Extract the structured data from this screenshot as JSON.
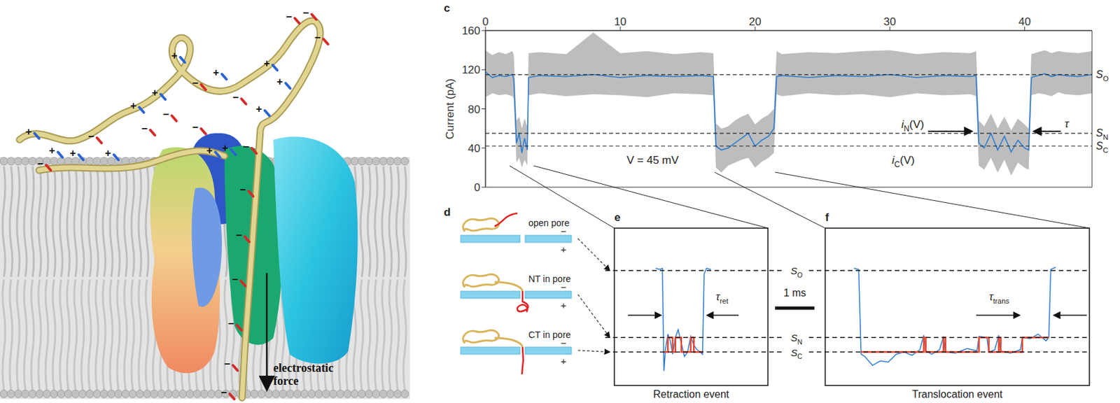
{
  "illustration": {
    "charges": [
      "+",
      "+",
      "−",
      "+",
      "−",
      "+",
      "+",
      "+",
      "−",
      "−",
      "+",
      "−",
      "+",
      "+",
      "−",
      "+",
      "−",
      "+",
      "+",
      "−",
      "−",
      "−",
      "+",
      "−",
      "−",
      "−",
      "−",
      "−",
      "−",
      "−"
    ],
    "charge_colors": {
      "+": "#2a63d4",
      "−": "#d42a2a"
    },
    "force_label": "electrostatic force"
  },
  "chart_data": [
    {
      "panel": "c",
      "type": "line",
      "x": [
        0,
        0.5,
        1,
        1.5,
        2,
        2.1,
        2.3,
        2.5,
        2.7,
        2.9,
        3.1,
        3.2,
        4,
        6,
        8,
        10,
        12,
        14,
        16,
        16.9,
        17.1,
        17.5,
        18,
        18.5,
        19,
        19.5,
        20,
        20.5,
        21,
        21.4,
        21.6,
        22,
        24,
        26,
        28,
        30,
        32,
        34,
        36,
        36.4,
        36.6,
        37,
        37.5,
        38,
        38.5,
        39,
        39.5,
        40,
        40.3,
        40.5,
        41,
        41.5,
        42,
        42.5,
        43,
        44,
        45
      ],
      "series": [
        {
          "values": [
            118,
            112,
            114,
            113,
            115,
            110,
            45,
            55,
            35,
            50,
            38,
            112,
            114,
            113,
            115,
            112,
            114,
            113,
            114,
            113,
            42,
            38,
            40,
            45,
            50,
            55,
            42,
            48,
            52,
            60,
            113,
            114,
            112,
            114,
            113,
            115,
            112,
            114,
            113,
            114,
            45,
            40,
            55,
            38,
            52,
            36,
            48,
            40,
            38,
            112,
            114,
            116,
            113,
            115,
            114,
            113,
            115
          ],
          "color": "#2b7bd0"
        }
      ],
      "raw": {
        "low": [
          92,
          96,
          94,
          95,
          93,
          90,
          25,
          30,
          20,
          28,
          22,
          94,
          96,
          93,
          95,
          94,
          92,
          96,
          95,
          94,
          20,
          15,
          22,
          25,
          28,
          30,
          20,
          26,
          30,
          35,
          95,
          93,
          96,
          94,
          95,
          92,
          96,
          94,
          95,
          93,
          22,
          18,
          30,
          15,
          28,
          12,
          25,
          20,
          18,
          94,
          96,
          95,
          93,
          97,
          95,
          94,
          96
        ],
        "high": [
          140,
          135,
          138,
          136,
          139,
          135,
          68,
          72,
          60,
          70,
          62,
          137,
          138,
          136,
          158,
          137,
          139,
          136,
          138,
          137,
          65,
          60,
          62,
          68,
          72,
          75,
          64,
          70,
          74,
          80,
          139,
          136,
          138,
          137,
          139,
          140,
          136,
          138,
          137,
          139,
          68,
          62,
          75,
          60,
          72,
          58,
          70,
          64,
          60,
          136,
          138,
          140,
          137,
          139,
          138,
          137,
          139
        ],
        "color": "#bdbdbd"
      },
      "xlim": [
        0,
        45
      ],
      "xticks": [
        0,
        10,
        20,
        30,
        40
      ],
      "ylim": [
        0,
        160
      ],
      "yticks": [
        0,
        40,
        80,
        120,
        160
      ],
      "y_label": "Current (pA)",
      "levels": [
        {
          "text": "S",
          "sub": "O",
          "value": 115
        },
        {
          "text": "S",
          "sub": "N",
          "value": 55
        },
        {
          "text": "S",
          "sub": "C",
          "value": 42
        }
      ],
      "annotations": [
        {
          "text": "V = 45 mV"
        },
        {
          "text": "i",
          "sub": "N",
          "suffix": "(V)"
        },
        {
          "text": "i",
          "sub": "C",
          "suffix": "(V)"
        },
        {
          "text": "τ"
        }
      ]
    },
    {
      "panel": "e",
      "type": "line",
      "title": "Retraction event",
      "x": [
        1.05,
        1.15,
        1.22,
        1.26,
        1.3,
        1.36,
        1.42,
        1.48,
        1.55,
        1.62,
        1.7,
        1.78,
        1.86,
        1.94,
        2.02,
        2.1,
        2.18,
        2.24,
        2.28,
        2.34,
        2.45
      ],
      "series": [
        {
          "values": [
            117,
            116,
            117,
            25,
            45,
            58,
            52,
            40,
            55,
            62,
            50,
            38,
            42,
            56,
            48,
            44,
            42,
            40,
            112,
            117,
            116
          ],
          "color": "#2b7bd0"
        },
        {
          "values": [
            null,
            null,
            null,
            42,
            42,
            55,
            55,
            42,
            55,
            55,
            42,
            42,
            42,
            55,
            42,
            42,
            42,
            42,
            null,
            null,
            null
          ],
          "color": "#e8452c",
          "line_style": "step"
        }
      ],
      "xlim": [
        0,
        3.9
      ],
      "ylim": [
        12,
        153
      ],
      "tick_labels": false,
      "annotations": [
        {
          "text": "τ",
          "sub": "ret"
        }
      ]
    },
    {
      "panel": "f",
      "type": "line",
      "title": "Translocation event",
      "x": [
        0.73,
        0.85,
        0.91,
        1.0,
        1.2,
        1.4,
        1.6,
        1.8,
        2.0,
        2.2,
        2.4,
        2.5,
        2.55,
        2.7,
        2.9,
        3.0,
        3.05,
        3.3,
        3.6,
        3.85,
        3.9,
        4.1,
        4.15,
        4.3,
        4.4,
        4.45,
        4.7,
        4.95,
        5.0,
        5.2,
        5.4,
        5.6,
        5.67,
        5.72,
        5.85
      ],
      "series": [
        {
          "values": [
            117,
            116,
            40,
            38,
            30,
            34,
            33,
            40,
            42,
            39,
            44,
            57,
            43,
            40,
            44,
            56,
            42,
            41,
            45,
            43,
            56,
            55,
            42,
            44,
            57,
            43,
            41,
            44,
            55,
            54,
            58,
            52,
            55,
            116,
            118
          ],
          "color": "#2b7bd0"
        },
        {
          "values": [
            null,
            null,
            42,
            42,
            42,
            42,
            42,
            42,
            42,
            42,
            42,
            55,
            42,
            42,
            42,
            55,
            42,
            42,
            42,
            42,
            55,
            55,
            42,
            42,
            55,
            42,
            42,
            42,
            55,
            55,
            55,
            55,
            55,
            null,
            null
          ],
          "color": "#e8452c",
          "line_style": "step"
        }
      ],
      "xlim": [
        0,
        6.7
      ],
      "ylim": [
        12,
        153
      ],
      "tick_labels": false,
      "annotations": [
        {
          "text": "τ",
          "sub": "trans"
        }
      ]
    }
  ],
  "panel_d": {
    "panel": "d",
    "rows": [
      {
        "label": "open pore",
        "top": "−",
        "bottom": "+"
      },
      {
        "label": "NT in pore",
        "top": "−",
        "bottom": "+"
      },
      {
        "label": "CT in pore",
        "top": "−",
        "bottom": "+"
      }
    ]
  },
  "zoom": {
    "levels": [
      {
        "text": "S",
        "sub": "O",
        "value": 115
      },
      {
        "text": "S",
        "sub": "N",
        "value": 55
      },
      {
        "text": "S",
        "sub": "C",
        "value": 42
      }
    ],
    "scale_bar": {
      "label": "1 ms",
      "value": 1
    }
  }
}
